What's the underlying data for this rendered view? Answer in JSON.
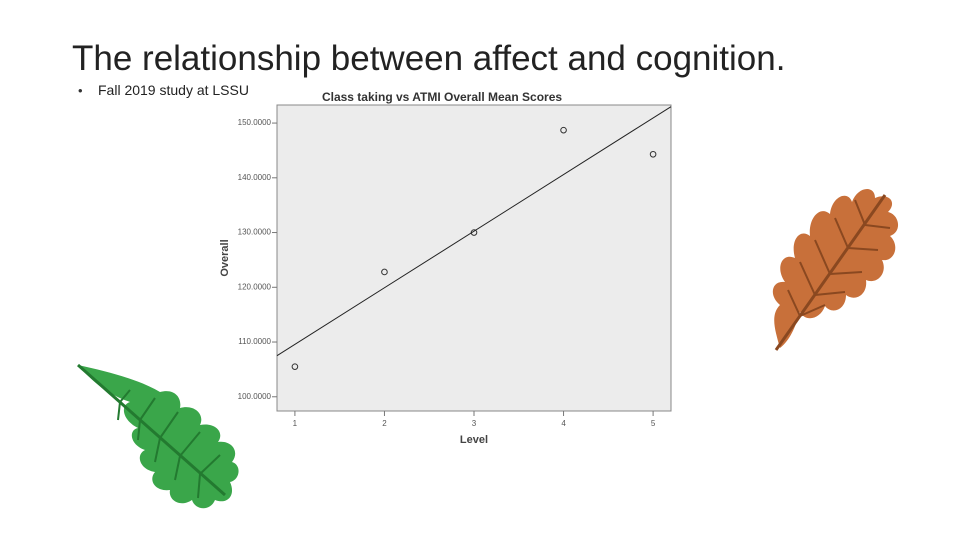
{
  "slide": {
    "title": "The relationship between affect and cognition.",
    "bullet": "Fall 2019 study at LSSU"
  },
  "chart_data": {
    "type": "scatter",
    "title": "Class taking vs ATMI Overall Mean Scores",
    "x_label": "Level",
    "y_label": "Overall",
    "series": [
      {
        "type": "scatter",
        "color": "#333333",
        "x": [
          1,
          2,
          3,
          4,
          5
        ],
        "values": [
          105.5,
          122.8,
          130,
          148.7,
          144.3
        ]
      },
      {
        "type": "line",
        "color": "#222222",
        "x": [
          0.8,
          5.2
        ],
        "values": [
          107.5,
          153
        ]
      }
    ],
    "xlim": [
      0.8,
      5.2
    ],
    "xticks": [
      1,
      2,
      3,
      4,
      5
    ],
    "ylim": [
      97.4,
      153.3
    ],
    "yticks": [
      {
        "value": 100,
        "label": "100.0000"
      },
      {
        "value": 110,
        "label": "110.0000"
      },
      {
        "value": 120,
        "label": "120.0000"
      },
      {
        "value": 130,
        "label": "130.0000"
      },
      {
        "value": 140,
        "label": "140.0000"
      },
      {
        "value": 150,
        "label": "150.0000"
      }
    ],
    "grid": false
  }
}
